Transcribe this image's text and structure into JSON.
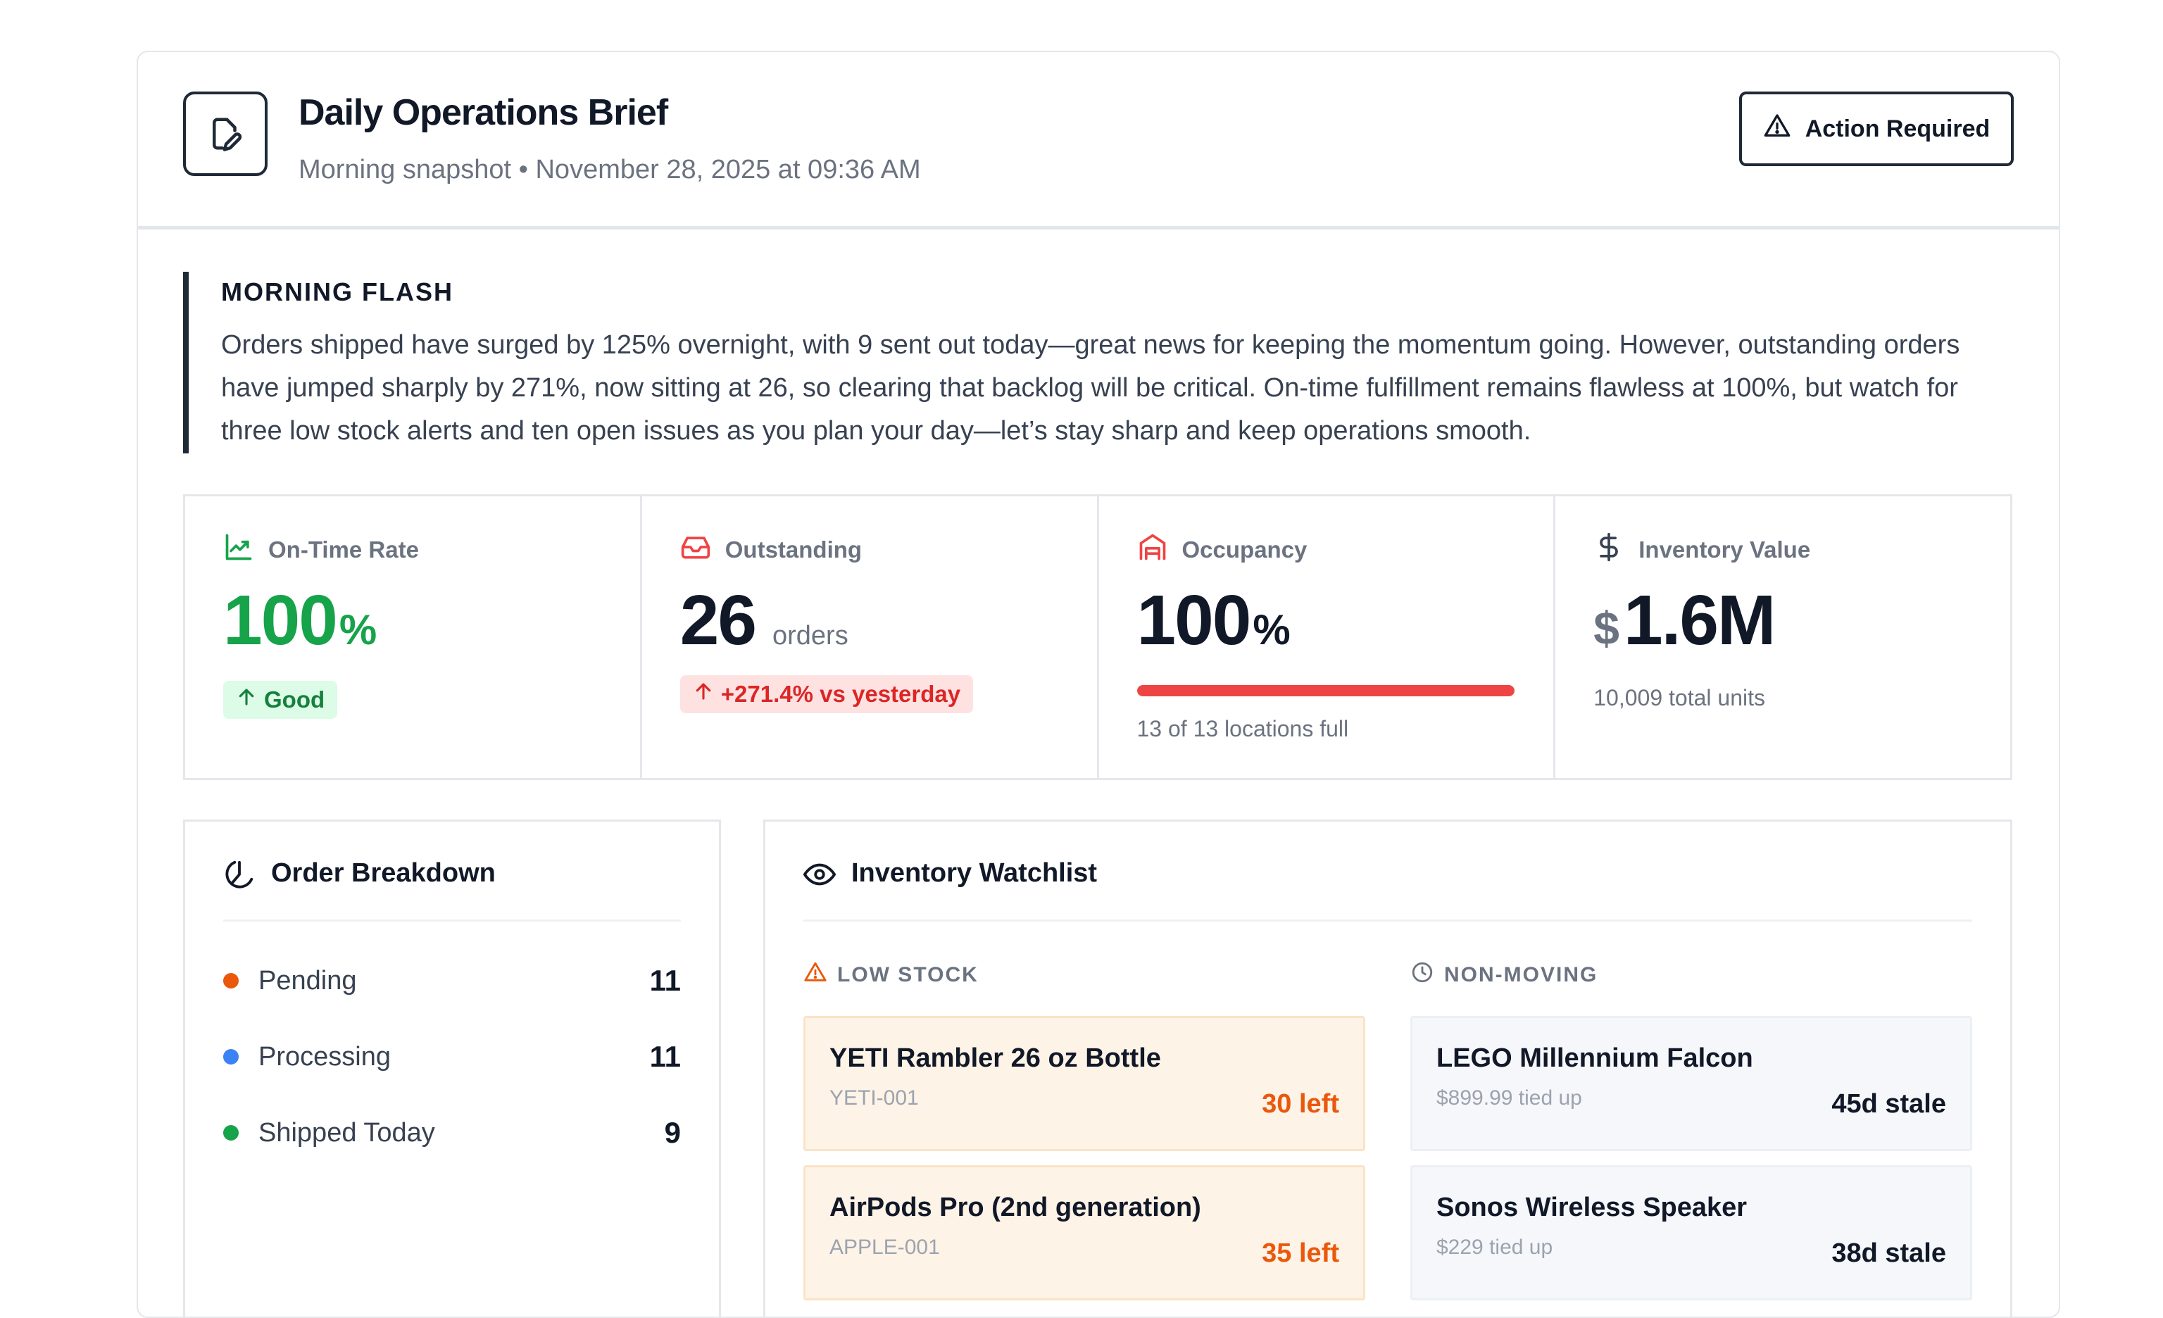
{
  "header": {
    "title": "Daily Operations Brief",
    "subtitle": "Morning snapshot • November 28, 2025 at 09:36 AM",
    "action_label": "Action Required",
    "icon": "edit-document-icon"
  },
  "flash": {
    "title": "MORNING FLASH",
    "text": "Orders shipped have surged by 125% overnight, with 9 sent out today—great news for keeping the momentum going. However, outstanding orders have jumped sharply by 271%, now sitting at 26, so clearing that backlog will be critical. On-time fulfillment remains flawless at 100%, but watch for three low stock alerts and ten open issues as you plan your day—let’s stay sharp and keep operations smooth."
  },
  "kpis": {
    "ontime": {
      "label": "On-Time Rate",
      "value": "100",
      "unit": "%",
      "badge": "Good",
      "icon": "trending-up-icon"
    },
    "outstanding": {
      "label": "Outstanding",
      "value": "26",
      "unit": "orders",
      "badge": "+271.4% vs yesterday",
      "icon": "inbox-icon"
    },
    "occupancy": {
      "label": "Occupancy",
      "value": "100",
      "unit": "%",
      "fill_fraction": 1.0,
      "note": "13 of 13 locations full",
      "icon": "warehouse-icon"
    },
    "inventory": {
      "label": "Inventory Value",
      "currency": "$",
      "value": "1.6M",
      "note": "10,009 total units",
      "icon": "dollar-icon"
    }
  },
  "order_breakdown": {
    "title": "Order Breakdown",
    "icon": "pie-chart-icon",
    "rows": [
      {
        "label": "Pending",
        "value": "11",
        "color": "#ea580c"
      },
      {
        "label": "Processing",
        "value": "11",
        "color": "#3b82f6"
      },
      {
        "label": "Shipped Today",
        "value": "9",
        "color": "#16a34a"
      }
    ]
  },
  "watchlist": {
    "title": "Inventory Watchlist",
    "icon": "eye-icon",
    "low_stock": {
      "label": "LOW STOCK",
      "items": [
        {
          "name": "YETI Rambler 26 oz Bottle",
          "sku": "YETI-001",
          "status": "30 left"
        },
        {
          "name": "AirPods Pro (2nd generation)",
          "sku": "APPLE-001",
          "status": "35 left"
        }
      ]
    },
    "non_moving": {
      "label": "NON-MOVING",
      "items": [
        {
          "name": "LEGO Millennium Falcon",
          "sub": "$899.99 tied up",
          "status": "45d stale"
        },
        {
          "name": "Sonos Wireless Speaker",
          "sub": "$229 tied up",
          "status": "38d stale"
        }
      ]
    }
  },
  "colors": {
    "good": "#16a34a",
    "alert": "#dc2626",
    "warning": "#ea580c",
    "text": "#111827",
    "muted": "#6b7280"
  }
}
